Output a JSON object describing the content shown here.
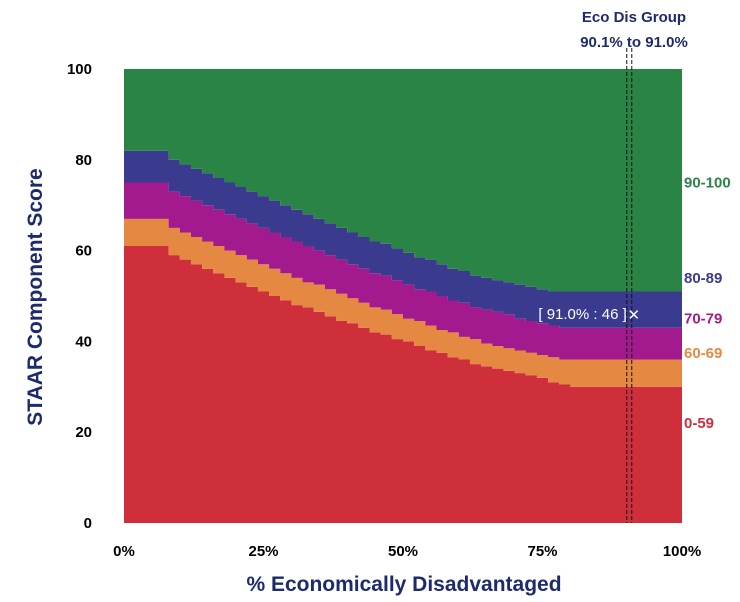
{
  "chart_data": {
    "type": "area",
    "title": "",
    "xlabel": "% Economically Disadvantaged",
    "ylabel": "STAAR Component Score",
    "xlim": [
      0,
      100
    ],
    "ylim": [
      0,
      100
    ],
    "x_ticks": [
      "0%",
      "25%",
      "50%",
      "75%",
      "100%"
    ],
    "y_ticks": [
      "0",
      "20",
      "40",
      "60",
      "80",
      "100"
    ],
    "x": [
      0,
      6,
      8,
      10,
      12,
      14,
      16,
      18,
      20,
      22,
      24,
      26,
      28,
      30,
      32,
      34,
      36,
      38,
      40,
      42,
      44,
      46,
      48,
      50,
      52,
      54,
      56,
      58,
      60,
      62,
      64,
      66,
      68,
      70,
      72,
      74,
      76,
      78,
      80,
      85,
      90,
      95,
      100
    ],
    "boundaries": {
      "0-59": [
        61,
        61,
        59,
        58,
        57,
        56,
        55,
        54,
        53,
        52,
        51,
        50,
        49,
        48,
        47.5,
        46.5,
        45.5,
        44.5,
        44,
        43,
        42,
        41.5,
        40.5,
        40,
        39,
        38,
        37.5,
        36.5,
        36,
        35,
        34.5,
        34,
        33.5,
        33,
        32.5,
        32,
        31,
        30.5,
        30,
        30,
        30,
        30,
        30
      ],
      "60-69": [
        67,
        67,
        65,
        64,
        63,
        62,
        61,
        60,
        59,
        58,
        57,
        56,
        55,
        54,
        53,
        52.5,
        51.5,
        50.5,
        49.5,
        48.5,
        47.5,
        47,
        46,
        45,
        44.5,
        43.5,
        42.5,
        42,
        41,
        40.5,
        39.5,
        39,
        38.5,
        38,
        37.5,
        37,
        36.5,
        36,
        36,
        36,
        36,
        36,
        36
      ],
      "70-79": [
        75,
        75,
        73,
        72,
        71,
        70,
        69,
        68,
        67,
        66,
        65,
        64,
        63,
        62,
        61,
        60,
        59,
        58,
        57,
        56,
        55,
        54.5,
        53.5,
        52.5,
        51.5,
        51,
        50,
        49,
        48.5,
        47.5,
        47,
        46.5,
        46,
        45,
        44.5,
        44,
        43.5,
        43,
        43,
        43,
        43,
        43,
        43
      ],
      "80-89": [
        82,
        82,
        80,
        79,
        78,
        77,
        76,
        75,
        74,
        73,
        72,
        71,
        70,
        69,
        68,
        67,
        66,
        65,
        64,
        63,
        62,
        61.5,
        60.5,
        59.5,
        58.5,
        58,
        57,
        56,
        55.5,
        54.5,
        54,
        53.5,
        53,
        52.5,
        52,
        51.5,
        51,
        51,
        51,
        51,
        51,
        51,
        51
      ],
      "90-100": [
        100,
        100,
        100,
        100,
        100,
        100,
        100,
        100,
        100,
        100,
        100,
        100,
        100,
        100,
        100,
        100,
        100,
        100,
        100,
        100,
        100,
        100,
        100,
        100,
        100,
        100,
        100,
        100,
        100,
        100,
        100,
        100,
        100,
        100,
        100,
        100,
        100,
        100,
        100,
        100,
        100,
        100,
        100
      ]
    },
    "bands": [
      {
        "name": "0-59",
        "color": "#cf2e3b"
      },
      {
        "name": "60-69",
        "color": "#e58841"
      },
      {
        "name": "70-79",
        "color": "#a21a8e"
      },
      {
        "name": "80-89",
        "color": "#3a3b8e"
      },
      {
        "name": "90-100",
        "color": "#2a8446"
      }
    ],
    "band_label_values": [
      22,
      37.5,
      45,
      54,
      75
    ],
    "group_label": [
      "Eco Dis Group",
      "90.1% to 91.0%"
    ],
    "group_range": [
      90.1,
      91.0
    ],
    "marker": {
      "x": 91.0,
      "y": 46,
      "label": "[ 91.0% : 46 ]",
      "symbol": "✕"
    }
  }
}
